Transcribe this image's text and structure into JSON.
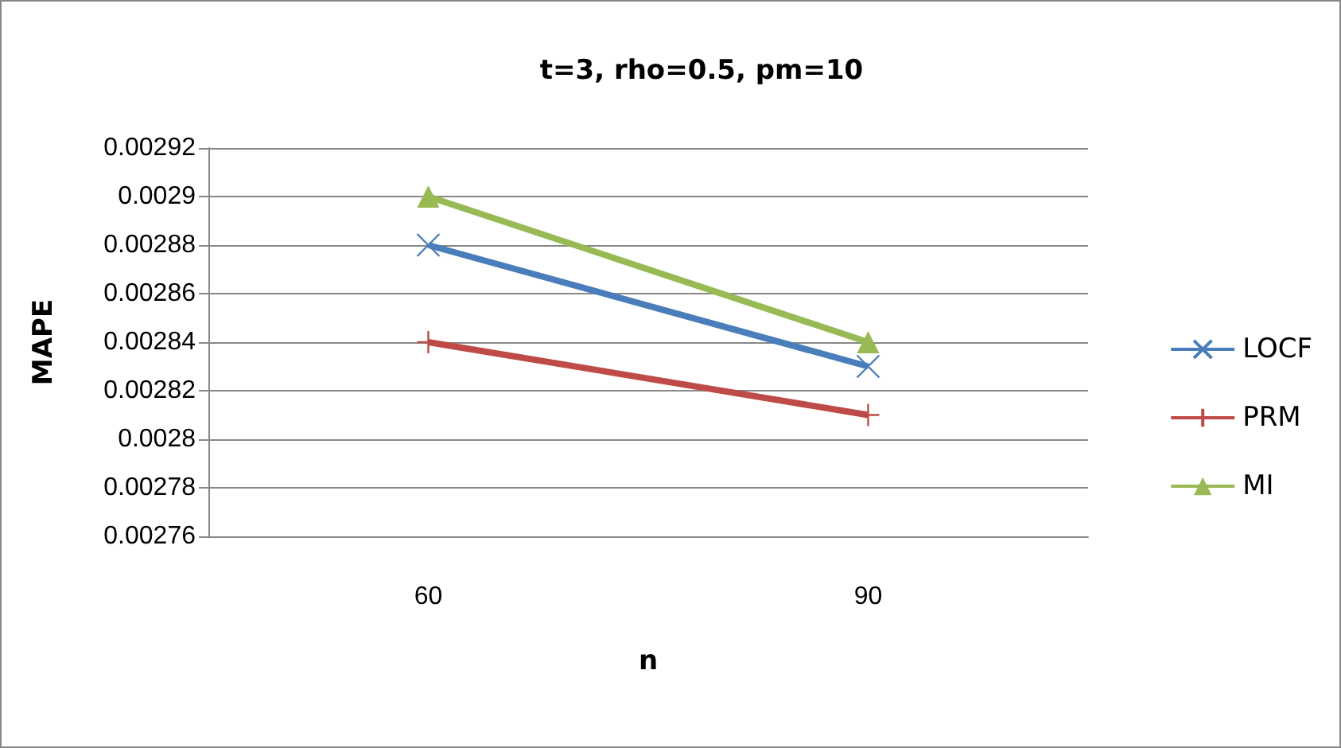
{
  "chart_data": {
    "type": "line",
    "title": "t=3, rho=0.5, pm=10",
    "xlabel": "n",
    "ylabel": "MAPE",
    "categories": [
      "60",
      "90"
    ],
    "series": [
      {
        "name": "LOCF",
        "color": "#4a7ebb",
        "values": [
          0.00288,
          0.00283
        ],
        "marker": "cross"
      },
      {
        "name": "PRM",
        "color": "#be4b48",
        "values": [
          0.00284,
          0.00281
        ],
        "marker": "plus"
      },
      {
        "name": "MI",
        "color": "#98b954",
        "values": [
          0.0029,
          0.00284
        ],
        "marker": "triangle"
      }
    ],
    "ylim": [
      0.00276,
      0.00292
    ],
    "yticks": [
      0.00276,
      0.00278,
      0.0028,
      0.00282,
      0.00284,
      0.00286,
      0.00288,
      0.0029,
      0.00292
    ],
    "grid": "y",
    "legend": "right"
  }
}
